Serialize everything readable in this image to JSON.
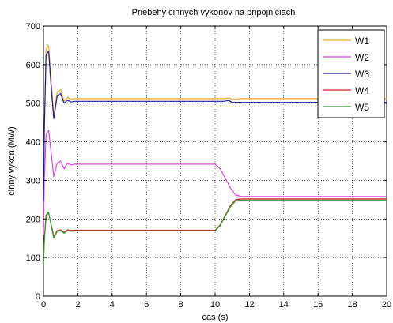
{
  "chart_data": {
    "type": "line",
    "title": "Priebehy cinnych vykonov na pripojniciach",
    "xlabel": "cas (s)",
    "ylabel": "cinny vykon (MW)",
    "xlim": [
      0,
      20
    ],
    "ylim": [
      0,
      700
    ],
    "xticks": [
      "0",
      "2",
      "4",
      "6",
      "8",
      "10",
      "12",
      "14",
      "16",
      "18",
      "20"
    ],
    "yticks": [
      "0",
      "100",
      "200",
      "300",
      "400",
      "500",
      "600",
      "700"
    ],
    "grid": true,
    "legend_position": "top-right",
    "series": [
      {
        "name": "W1",
        "color": "#f5a623",
        "x": [
          0,
          0.05,
          0.15,
          0.3,
          0.45,
          0.6,
          0.8,
          1.0,
          1.2,
          1.4,
          1.6,
          1.8,
          2.2,
          10.0,
          10.5,
          10.8,
          11.0,
          11.5,
          12.0,
          20.0
        ],
        "y": [
          260,
          440,
          640,
          650,
          560,
          470,
          530,
          535,
          505,
          515,
          510,
          512,
          512,
          512,
          512,
          514,
          510,
          512,
          512,
          512
        ]
      },
      {
        "name": "W2",
        "color": "#e040e0",
        "x": [
          0,
          0.05,
          0.15,
          0.3,
          0.45,
          0.6,
          0.8,
          1.0,
          1.2,
          1.4,
          1.6,
          1.8,
          2.2,
          10.0,
          10.3,
          10.6,
          10.9,
          11.2,
          11.6,
          12.0,
          20.0
        ],
        "y": [
          160,
          300,
          420,
          430,
          370,
          310,
          345,
          350,
          330,
          345,
          340,
          342,
          342,
          342,
          330,
          305,
          280,
          262,
          258,
          258,
          258
        ]
      },
      {
        "name": "W3",
        "color": "#1a1aa0",
        "x": [
          0,
          0.05,
          0.15,
          0.3,
          0.45,
          0.6,
          0.8,
          1.0,
          1.2,
          1.4,
          1.6,
          1.8,
          2.2,
          10.0,
          10.5,
          10.8,
          11.0,
          11.5,
          12.0,
          20.0
        ],
        "y": [
          250,
          430,
          625,
          635,
          540,
          460,
          520,
          525,
          500,
          508,
          503,
          505,
          505,
          505,
          505,
          507,
          502,
          502,
          502,
          502
        ]
      },
      {
        "name": "W4",
        "color": "#d42020",
        "x": [
          0,
          0.05,
          0.15,
          0.3,
          0.45,
          0.6,
          0.8,
          1.0,
          1.2,
          1.4,
          1.6,
          1.8,
          2.2,
          10.0,
          10.3,
          10.6,
          10.9,
          11.2,
          11.6,
          12.0,
          20.0
        ],
        "y": [
          90,
          150,
          210,
          215,
          185,
          155,
          170,
          172,
          165,
          172,
          170,
          171,
          171,
          171,
          185,
          210,
          235,
          250,
          252,
          252,
          252
        ]
      },
      {
        "name": "W5",
        "color": "#2aa02a",
        "x": [
          0,
          0.05,
          0.15,
          0.3,
          0.45,
          0.6,
          0.8,
          1.0,
          1.2,
          1.4,
          1.6,
          1.8,
          2.2,
          10.0,
          10.3,
          10.6,
          10.9,
          11.2,
          11.6,
          12.0,
          20.0
        ],
        "y": [
          80,
          140,
          205,
          218,
          182,
          150,
          168,
          170,
          163,
          170,
          168,
          169,
          169,
          169,
          183,
          208,
          232,
          247,
          249,
          249,
          249
        ]
      }
    ]
  }
}
